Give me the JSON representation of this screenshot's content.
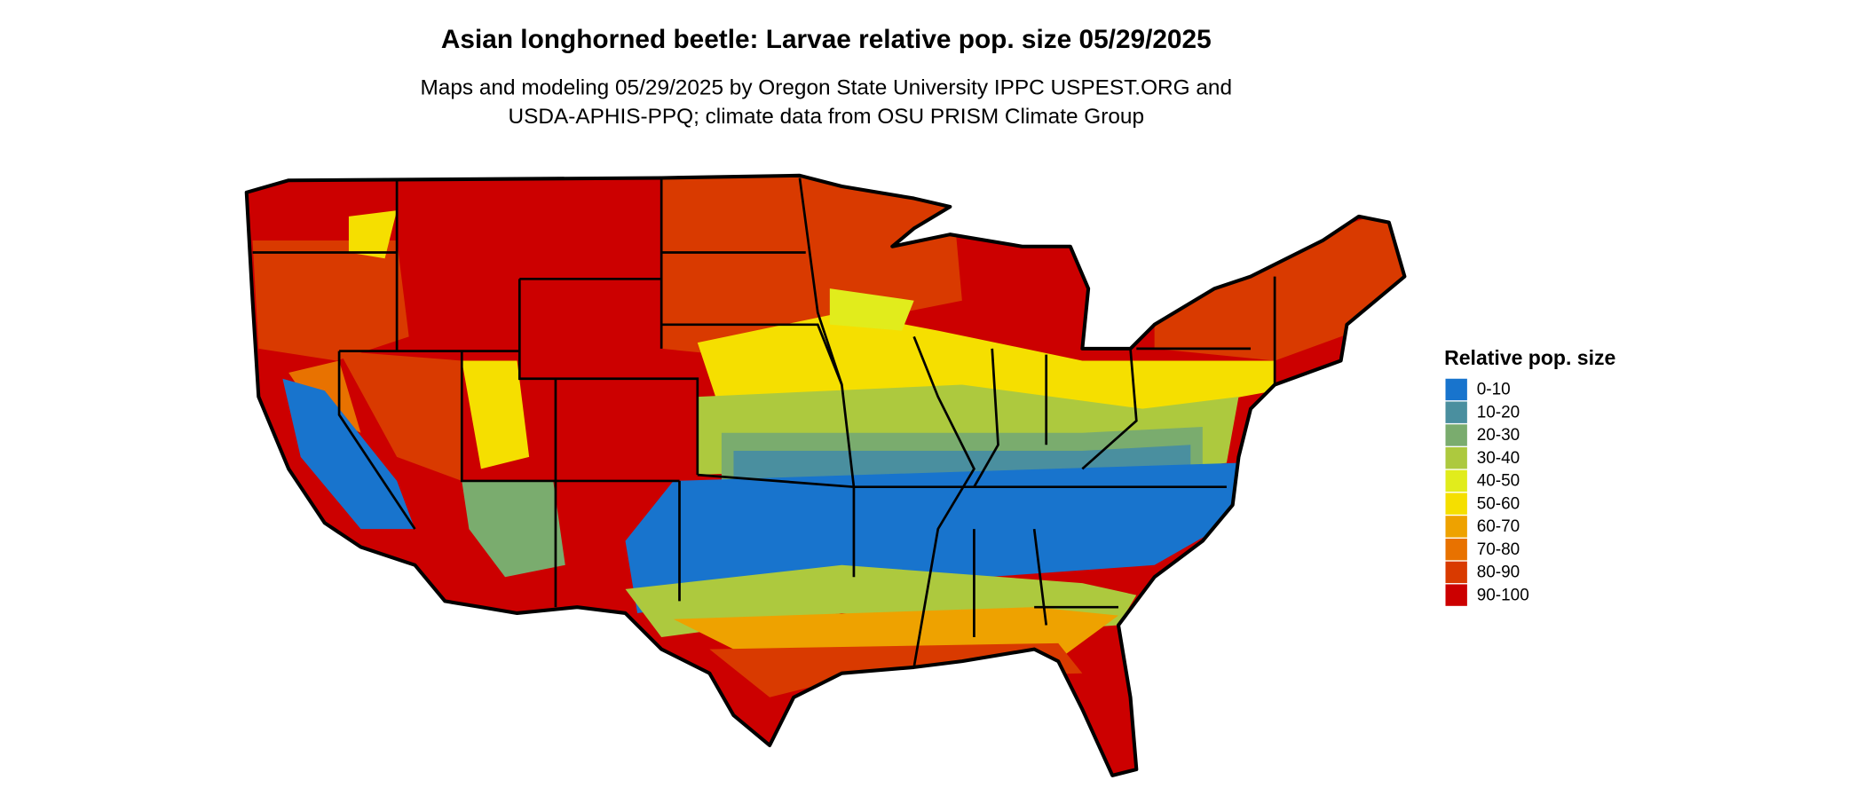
{
  "title": "Asian longhorned beetle: Larvae relative pop. size 05/29/2025",
  "subtitle": [
    "Maps and modeling 05/29/2025 by Oregon State University IPPC USPEST.ORG and",
    "USDA-APHIS-PPQ; climate data from OSU PRISM Climate Group"
  ],
  "legend": {
    "title": "Relative pop. size",
    "items": [
      {
        "label": "0-10",
        "color": "#1874cd"
      },
      {
        "label": "10-20",
        "color": "#4a8f9f"
      },
      {
        "label": "20-30",
        "color": "#7aac6e"
      },
      {
        "label": "30-40",
        "color": "#adc93e"
      },
      {
        "label": "40-50",
        "color": "#e1ec1c"
      },
      {
        "label": "50-60",
        "color": "#f5df00"
      },
      {
        "label": "60-70",
        "color": "#eea200"
      },
      {
        "label": "70-80",
        "color": "#e87200"
      },
      {
        "label": "80-90",
        "color": "#d93a00"
      },
      {
        "label": "90-100",
        "color": "#cc0000"
      }
    ]
  }
}
